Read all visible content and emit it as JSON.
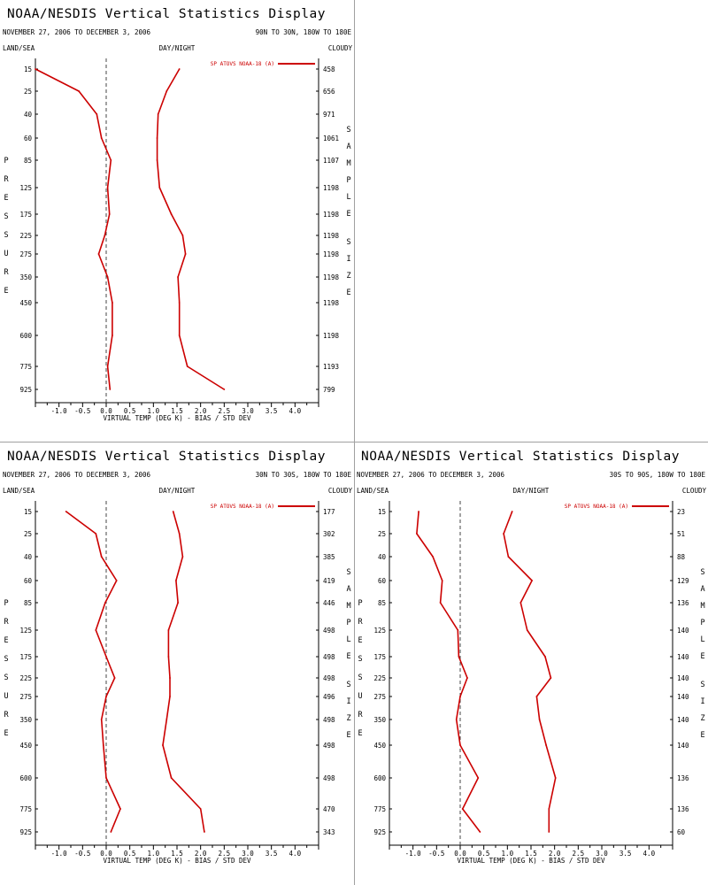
{
  "page": {
    "title": "NOAA/NESDIS Vertical Statistics Display",
    "date_range": "NOVEMBER 27, 2006 TO DECEMBER 3, 2006",
    "land_sea_label": "LAND/SEA",
    "day_night_label": "DAY/NIGHT",
    "cloudy_label": "CLOUDY",
    "left_axis_title": "PRESSURE",
    "right_axis_title": "SAMPLE SIZE"
  },
  "chart_data": [
    {
      "type": "line",
      "title": "NOAA/NESDIS Vertical Statistics Display",
      "region": "90N TO 30N, 180W TO 180E",
      "xlabel": "VIRTUAL TEMP (DEG K) - BIAS / STD DEV",
      "ylabel": "PRESSURE",
      "xlim": [
        -1.5,
        4.5
      ],
      "x_ticks": [
        -1.0,
        -0.5,
        0.0,
        0.5,
        1.0,
        1.5,
        2.0,
        2.5,
        3.0,
        3.5,
        4.0
      ],
      "x_tick_labels": [
        "-1.0",
        "-0.5",
        "0.0",
        "0.5",
        "1.0",
        "1.5",
        "2.0",
        "2.5",
        "3.0",
        "3.5",
        "4.0"
      ],
      "pressure_levels": [
        "15",
        "25",
        "40",
        "60",
        "85",
        "125",
        "175",
        "225",
        "275",
        "350",
        "450",
        "600",
        "775",
        "925"
      ],
      "sample_size": [
        "458",
        "656",
        "971",
        "1061",
        "1107",
        "1198",
        "1198",
        "1198",
        "1198",
        "1198",
        "1198",
        "1198",
        "1193",
        "799"
      ],
      "legend": "SP ATOVS NOAA-18 (A)",
      "series": [
        {
          "name": "bias",
          "values": [
            -1.5,
            -0.58,
            -0.2,
            -0.1,
            0.1,
            0.03,
            0.07,
            -0.03,
            -0.16,
            0.03,
            0.13,
            0.13,
            0.03,
            0.08
          ]
        },
        {
          "name": "std_dev",
          "values": [
            1.55,
            1.28,
            1.1,
            1.08,
            1.08,
            1.13,
            1.38,
            1.62,
            1.68,
            1.52,
            1.55,
            1.55,
            1.72,
            2.5
          ]
        }
      ],
      "grid": false
    },
    {
      "type": "line",
      "title": "NOAA/NESDIS Vertical Statistics Display",
      "region": "30N TO 30S, 180W TO 180E",
      "xlabel": "VIRTUAL TEMP (DEG K) - BIAS / STD DEV",
      "ylabel": "PRESSURE",
      "xlim": [
        -1.5,
        4.5
      ],
      "x_ticks": [
        -1.0,
        -0.5,
        0.0,
        0.5,
        1.0,
        1.5,
        2.0,
        2.5,
        3.0,
        3.5,
        4.0
      ],
      "x_tick_labels": [
        "-1.0",
        "-0.5",
        "0.0",
        "0.5",
        "1.0",
        "1.5",
        "2.0",
        "2.5",
        "3.0",
        "3.5",
        "4.0"
      ],
      "pressure_levels": [
        "15",
        "25",
        "40",
        "60",
        "85",
        "125",
        "175",
        "225",
        "275",
        "350",
        "450",
        "600",
        "775",
        "925"
      ],
      "sample_size": [
        "177",
        "302",
        "385",
        "419",
        "446",
        "498",
        "498",
        "498",
        "496",
        "498",
        "498",
        "498",
        "470",
        "343"
      ],
      "legend": "SP ATOVS NOAA-18 (A)",
      "series": [
        {
          "name": "bias",
          "values": [
            -0.85,
            -0.22,
            -0.1,
            0.22,
            -0.02,
            -0.22,
            0.0,
            0.18,
            0.0,
            -0.1,
            -0.06,
            0.0,
            0.3,
            0.1
          ]
        },
        {
          "name": "std_dev",
          "values": [
            1.42,
            1.55,
            1.62,
            1.48,
            1.52,
            1.32,
            1.32,
            1.35,
            1.35,
            1.28,
            1.2,
            1.38,
            2.0,
            2.08
          ]
        }
      ],
      "grid": false
    },
    {
      "type": "line",
      "title": "NOAA/NESDIS Vertical Statistics Display",
      "region": "30S TO 90S, 180W TO 180E",
      "xlabel": "VIRTUAL TEMP (DEG K) - BIAS / STD DEV",
      "ylabel": "PRESSURE",
      "xlim": [
        -1.5,
        4.5
      ],
      "x_ticks": [
        -1.0,
        -0.5,
        0.0,
        0.5,
        1.0,
        1.5,
        2.0,
        2.5,
        3.0,
        3.5,
        4.0
      ],
      "x_tick_labels": [
        "-1.0",
        "-0.5",
        "0.0",
        "0.5",
        "1.0",
        "1.5",
        "2.0",
        "2.5",
        "3.0",
        "3.5",
        "4.0"
      ],
      "pressure_levels": [
        "15",
        "25",
        "40",
        "60",
        "85",
        "125",
        "175",
        "225",
        "275",
        "350",
        "450",
        "600",
        "775",
        "925"
      ],
      "sample_size": [
        "23",
        "51",
        "88",
        "129",
        "136",
        "140",
        "140",
        "140",
        "140",
        "140",
        "140",
        "136",
        "136",
        "60"
      ],
      "legend": "SP ATOVS NOAA-18 (A)",
      "series": [
        {
          "name": "bias",
          "values": [
            -0.88,
            -0.92,
            -0.58,
            -0.38,
            -0.42,
            -0.05,
            -0.03,
            0.15,
            0.0,
            -0.08,
            0.0,
            0.38,
            0.05,
            0.42
          ]
        },
        {
          "name": "std_dev",
          "values": [
            1.1,
            0.92,
            1.02,
            1.52,
            1.28,
            1.42,
            1.8,
            1.92,
            1.62,
            1.68,
            1.82,
            2.02,
            1.88,
            1.88
          ]
        }
      ],
      "grid": false
    }
  ],
  "colors": {
    "series": "#cc0000",
    "zero_line": "#444444",
    "divider": "#a0a0a0",
    "axis": "#000000"
  }
}
